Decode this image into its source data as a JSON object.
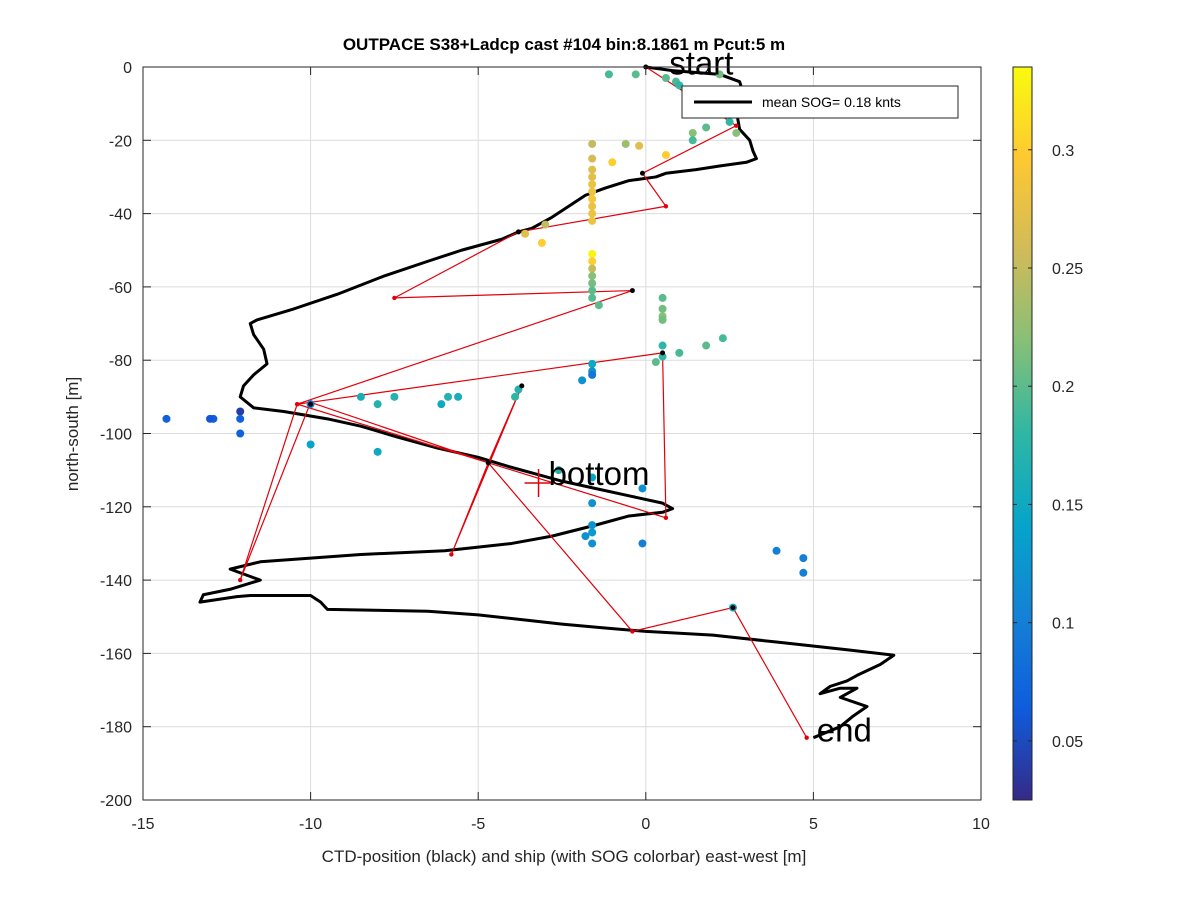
{
  "chart_data": {
    "type": "scatter",
    "title": "OUTPACE S38+Ladcp cast #104 bin:8.1861 m  Pcut:5 m",
    "xlabel": "CTD-position (black) and ship (with SOG colorbar) east-west [m]",
    "ylabel": "north-south [m]",
    "xlim": [
      -15,
      10
    ],
    "ylim": [
      -200,
      0
    ],
    "xticks": [
      -15,
      -10,
      -5,
      0,
      5,
      10
    ],
    "yticks": [
      0,
      -20,
      -40,
      -60,
      -80,
      -100,
      -120,
      -140,
      -160,
      -180,
      -200
    ],
    "xtick_labels": [
      "-15",
      "-10",
      "-5",
      "0",
      "5",
      "10"
    ],
    "ytick_labels": [
      "0",
      "-20",
      "-40",
      "-60",
      "-80",
      "-100",
      "-120",
      "-140",
      "-160",
      "-180",
      "-200"
    ],
    "grid": true,
    "legend": {
      "label": "mean SOG=  0.18 knts",
      "location": "top-right"
    },
    "annotations": [
      {
        "text": "start",
        "x": 0.7,
        "y": -2
      },
      {
        "text": "bottom",
        "x": -2.9,
        "y": -114
      },
      {
        "text": "end",
        "x": 5.1,
        "y": -184
      }
    ],
    "bottom_marker": {
      "x": -3.2,
      "y": -113.5
    },
    "colorbar": {
      "min": 0.025,
      "max": 0.335,
      "ticks": [
        0.05,
        0.1,
        0.15,
        0.2,
        0.25,
        0.3
      ],
      "tick_labels": [
        "0.05",
        "0.1",
        "0.15",
        "0.2",
        "0.25",
        "0.3"
      ],
      "colormap": [
        "#352a87",
        "#0f5cdd",
        "#1481d6",
        "#06a4ca",
        "#2eb7a4",
        "#87bf77",
        "#d1bb59",
        "#fec832",
        "#f9fb0e"
      ]
    },
    "ctd_track": {
      "name": "CTD-position",
      "color": "#000000",
      "points": [
        [
          0,
          0
        ],
        [
          0.8,
          -1
        ],
        [
          2.2,
          -2
        ],
        [
          2.8,
          -4
        ],
        [
          2.9,
          -7
        ],
        [
          2.7,
          -12
        ],
        [
          2.8,
          -17
        ],
        [
          3.1,
          -20
        ],
        [
          3.2,
          -23
        ],
        [
          3.3,
          -25
        ],
        [
          3,
          -26
        ],
        [
          2.2,
          -27
        ],
        [
          1.5,
          -28
        ],
        [
          0.6,
          -29
        ],
        [
          0.3,
          -30
        ],
        [
          -0.5,
          -31
        ],
        [
          -1.2,
          -33
        ],
        [
          -1.8,
          -35
        ],
        [
          -2.3,
          -38
        ],
        [
          -2.8,
          -41
        ],
        [
          -3.4,
          -44
        ],
        [
          -3.8,
          -45
        ],
        [
          -4.3,
          -47
        ],
        [
          -5.5,
          -50
        ],
        [
          -6.5,
          -53
        ],
        [
          -7.8,
          -57
        ],
        [
          -9.2,
          -62
        ],
        [
          -10.5,
          -66
        ],
        [
          -11.6,
          -69
        ],
        [
          -11.8,
          -70
        ],
        [
          -11.7,
          -73
        ],
        [
          -11.4,
          -77
        ],
        [
          -11.3,
          -81
        ],
        [
          -11.7,
          -84
        ],
        [
          -12,
          -87
        ],
        [
          -12.1,
          -90
        ],
        [
          -11.7,
          -93
        ],
        [
          -10.8,
          -94
        ],
        [
          -9.5,
          -96
        ],
        [
          -8.5,
          -98
        ],
        [
          -7.4,
          -101
        ],
        [
          -6.2,
          -104
        ],
        [
          -5,
          -106.5
        ],
        [
          -4.1,
          -109
        ],
        [
          -3.3,
          -111
        ],
        [
          -2.5,
          -113
        ],
        [
          -1.5,
          -115
        ],
        [
          -0.5,
          -117
        ],
        [
          0.5,
          -119
        ],
        [
          0.8,
          -120.5
        ],
        [
          0.5,
          -121.5
        ],
        [
          -0.5,
          -122.5
        ],
        [
          -1.5,
          -125
        ],
        [
          -2.8,
          -128
        ],
        [
          -4,
          -130
        ],
        [
          -5,
          -131
        ],
        [
          -6,
          -132
        ],
        [
          -8.5,
          -133
        ],
        [
          -10,
          -134
        ],
        [
          -11.5,
          -135
        ],
        [
          -12.4,
          -137
        ],
        [
          -11.5,
          -140
        ],
        [
          -12.4,
          -142.5
        ],
        [
          -13.2,
          -144
        ],
        [
          -13.3,
          -146
        ],
        [
          -12.2,
          -144.5
        ],
        [
          -11.8,
          -144.2
        ],
        [
          -10,
          -144.2
        ],
        [
          -9.7,
          -146
        ],
        [
          -9.5,
          -148
        ],
        [
          -6.5,
          -148.5
        ],
        [
          -5,
          -149.5
        ],
        [
          -3.5,
          -151
        ],
        [
          -2.5,
          -152
        ],
        [
          -1.3,
          -153
        ],
        [
          0,
          -154
        ],
        [
          2,
          -155
        ],
        [
          4,
          -157
        ],
        [
          6,
          -159
        ],
        [
          7.4,
          -160.5
        ],
        [
          7,
          -163
        ],
        [
          6.3,
          -166
        ],
        [
          6,
          -167.5
        ],
        [
          5.5,
          -169
        ],
        [
          5.2,
          -171
        ],
        [
          5.8,
          -169.5
        ],
        [
          6.3,
          -169.5
        ],
        [
          5.8,
          -172
        ],
        [
          6.6,
          -174.5
        ],
        [
          6.2,
          -177
        ],
        [
          5.8,
          -180
        ],
        [
          5,
          -183
        ]
      ]
    },
    "ship_path": {
      "name": "ship",
      "color": "#e3000b",
      "points": [
        [
          0,
          0
        ],
        [
          2.7,
          -16
        ],
        [
          -0.1,
          -29
        ],
        [
          0.6,
          -38
        ],
        [
          -3.8,
          -45
        ],
        [
          -7.5,
          -63
        ],
        [
          -0.4,
          -61
        ],
        [
          -10.4,
          -92
        ],
        [
          0.5,
          -78
        ],
        [
          0.6,
          -123
        ],
        [
          -4.7,
          -108
        ],
        [
          -5.8,
          -133
        ],
        [
          -3.7,
          -87
        ],
        [
          -4.7,
          -108
        ],
        [
          -10.4,
          -92
        ],
        [
          -12.1,
          -140
        ],
        [
          -10,
          -91.5
        ],
        [
          -4.7,
          -108
        ],
        [
          -0.4,
          -154
        ],
        [
          2.6,
          -147.5
        ],
        [
          4.8,
          -183
        ]
      ]
    },
    "ship_black_dots": [
      [
        0,
        0
      ],
      [
        -0.1,
        -29
      ],
      [
        -3.8,
        -45
      ],
      [
        -0.4,
        -61
      ],
      [
        0.5,
        -78
      ],
      [
        -3.7,
        -87
      ],
      [
        -10,
        -92
      ],
      [
        -4.7,
        -108
      ],
      [
        2.6,
        -147.5
      ]
    ],
    "sog_points": [
      {
        "x": -1.1,
        "y": -2,
        "v": 0.19
      },
      {
        "x": -0.3,
        "y": -2,
        "v": 0.2
      },
      {
        "x": 0.6,
        "y": -3,
        "v": 0.2
      },
      {
        "x": 0.9,
        "y": -4,
        "v": 0.19
      },
      {
        "x": 1,
        "y": -5,
        "v": 0.18
      },
      {
        "x": 2.2,
        "y": -2,
        "v": 0.21
      },
      {
        "x": 2.6,
        "y": -7,
        "v": 0.2
      },
      {
        "x": 2.5,
        "y": -15,
        "v": 0.18
      },
      {
        "x": 2.7,
        "y": -18,
        "v": 0.22
      },
      {
        "x": 1.8,
        "y": -16.5,
        "v": 0.2
      },
      {
        "x": 1.4,
        "y": -18,
        "v": 0.22
      },
      {
        "x": 1.4,
        "y": -20,
        "v": 0.19
      },
      {
        "x": -1.6,
        "y": -21,
        "v": 0.25
      },
      {
        "x": -0.6,
        "y": -21,
        "v": 0.23
      },
      {
        "x": -0.2,
        "y": -21.5,
        "v": 0.27
      },
      {
        "x": -1.6,
        "y": -25,
        "v": 0.26
      },
      {
        "x": -1,
        "y": -26,
        "v": 0.3
      },
      {
        "x": 0.6,
        "y": -24,
        "v": 0.3
      },
      {
        "x": -1.6,
        "y": -28,
        "v": 0.27
      },
      {
        "x": -1.6,
        "y": -30,
        "v": 0.27
      },
      {
        "x": -1.6,
        "y": -32,
        "v": 0.28
      },
      {
        "x": -1.6,
        "y": -34,
        "v": 0.28
      },
      {
        "x": -1.6,
        "y": -36,
        "v": 0.29
      },
      {
        "x": -1.6,
        "y": -38,
        "v": 0.28
      },
      {
        "x": -1.6,
        "y": -40,
        "v": 0.28
      },
      {
        "x": -1.6,
        "y": -42,
        "v": 0.28
      },
      {
        "x": -3,
        "y": -43,
        "v": 0.25
      },
      {
        "x": -3.6,
        "y": -45.5,
        "v": 0.27
      },
      {
        "x": -3.1,
        "y": -48,
        "v": 0.3
      },
      {
        "x": -1.6,
        "y": -51,
        "v": 0.33
      },
      {
        "x": -1.6,
        "y": -53,
        "v": 0.3
      },
      {
        "x": -1.6,
        "y": -55,
        "v": 0.25
      },
      {
        "x": -1.6,
        "y": -57,
        "v": 0.22
      },
      {
        "x": -1.6,
        "y": -59,
        "v": 0.21
      },
      {
        "x": -1.6,
        "y": -61,
        "v": 0.2
      },
      {
        "x": -1.6,
        "y": -63,
        "v": 0.2
      },
      {
        "x": -1.4,
        "y": -65,
        "v": 0.2
      },
      {
        "x": 0.5,
        "y": -63,
        "v": 0.2
      },
      {
        "x": 0.5,
        "y": -66,
        "v": 0.21
      },
      {
        "x": 0.5,
        "y": -68,
        "v": 0.22
      },
      {
        "x": 0.5,
        "y": -69,
        "v": 0.21
      },
      {
        "x": 0.5,
        "y": -76,
        "v": 0.18
      },
      {
        "x": 1,
        "y": -78,
        "v": 0.19
      },
      {
        "x": 0.5,
        "y": -79,
        "v": 0.18
      },
      {
        "x": 0.3,
        "y": -80.5,
        "v": 0.2
      },
      {
        "x": 1.8,
        "y": -76,
        "v": 0.2
      },
      {
        "x": 2.3,
        "y": -74,
        "v": 0.19
      },
      {
        "x": -1.6,
        "y": -81,
        "v": 0.15
      },
      {
        "x": -1.6,
        "y": -83,
        "v": 0.12
      },
      {
        "x": -1.6,
        "y": -84,
        "v": 0.09
      },
      {
        "x": -1.9,
        "y": -85.5,
        "v": 0.12
      },
      {
        "x": -3.8,
        "y": -88,
        "v": 0.17
      },
      {
        "x": -3.9,
        "y": -90,
        "v": 0.18
      },
      {
        "x": -5.6,
        "y": -90,
        "v": 0.16
      },
      {
        "x": -5.9,
        "y": -90,
        "v": 0.17
      },
      {
        "x": -6.1,
        "y": -92,
        "v": 0.15
      },
      {
        "x": -7.5,
        "y": -90,
        "v": 0.17
      },
      {
        "x": -8,
        "y": -92,
        "v": 0.17
      },
      {
        "x": -8.5,
        "y": -90,
        "v": 0.16
      },
      {
        "x": -10,
        "y": -92,
        "v": 0.1
      },
      {
        "x": -10,
        "y": -103,
        "v": 0.14
      },
      {
        "x": -8,
        "y": -105,
        "v": 0.15
      },
      {
        "x": -12.1,
        "y": -94,
        "v": 0.04
      },
      {
        "x": -12.1,
        "y": -96,
        "v": 0.07
      },
      {
        "x": -12.1,
        "y": -100,
        "v": 0.07
      },
      {
        "x": -12.9,
        "y": -96,
        "v": 0.07
      },
      {
        "x": -13,
        "y": -96,
        "v": 0.06
      },
      {
        "x": -14.3,
        "y": -96,
        "v": 0.07
      },
      {
        "x": -2.6,
        "y": -110,
        "v": 0.17
      },
      {
        "x": -1.6,
        "y": -112,
        "v": 0.14
      },
      {
        "x": -0.1,
        "y": -115,
        "v": 0.12
      },
      {
        "x": -1.6,
        "y": -119,
        "v": 0.12
      },
      {
        "x": -1.6,
        "y": -125,
        "v": 0.12
      },
      {
        "x": -1.6,
        "y": -127,
        "v": 0.13
      },
      {
        "x": -1.6,
        "y": -130,
        "v": 0.12
      },
      {
        "x": -1.8,
        "y": -128,
        "v": 0.12
      },
      {
        "x": -0.1,
        "y": -130,
        "v": 0.1
      },
      {
        "x": 3.9,
        "y": -132,
        "v": 0.1
      },
      {
        "x": 4.7,
        "y": -134,
        "v": 0.1
      },
      {
        "x": 4.7,
        "y": -138,
        "v": 0.1
      },
      {
        "x": 2.6,
        "y": -147.5,
        "v": 0.15
      }
    ]
  }
}
